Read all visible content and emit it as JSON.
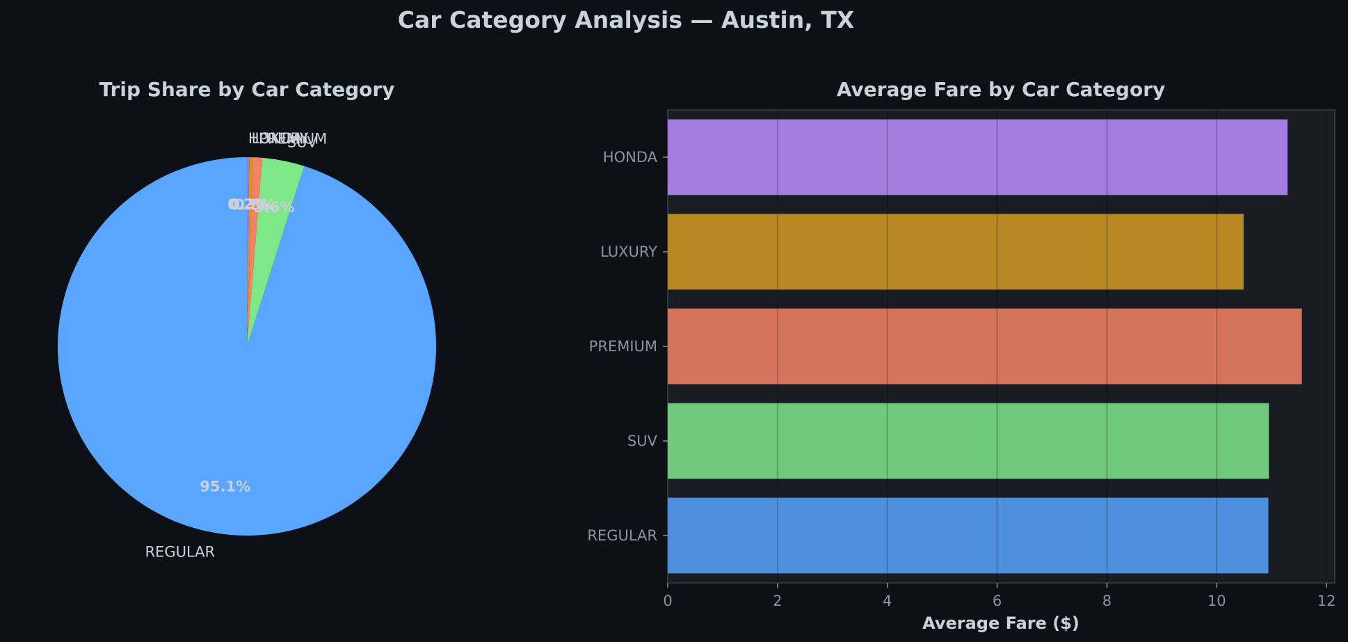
{
  "figure": {
    "title": "Car Category Analysis — Austin, TX",
    "background": "#0d1117",
    "axes_face": "#161b22",
    "text_color": "#c9d1d9",
    "tick_color": "#8b949e"
  },
  "chart_data": [
    {
      "type": "pie",
      "title": "Trip Share by Car Category",
      "categories": [
        "HONDA",
        "LUXURY",
        "PREMIUM",
        "SUV",
        "REGULAR"
      ],
      "values": [
        0.2,
        0.3,
        0.8,
        3.6,
        95.1
      ],
      "labels_pct": [
        "0.2%",
        "0.3%",
        "0.8%",
        "3.6%",
        "95.1%"
      ],
      "colors": [
        "#a371f7",
        "#d29922",
        "#f78166",
        "#7ee787",
        "#58a6ff"
      ],
      "start_angle": 90,
      "direction": "clockwise"
    },
    {
      "type": "bar",
      "orientation": "horizontal",
      "title": "Average Fare by Car Category",
      "categories": [
        "HONDA",
        "LUXURY",
        "PREMIUM",
        "SUV",
        "REGULAR"
      ],
      "values": [
        11.29,
        10.49,
        11.55,
        10.95,
        10.94
      ],
      "colors": [
        "#a37cdf",
        "#b78722",
        "#d6735c",
        "#6fc97a",
        "#4f90de"
      ],
      "xlabel": "Average Fare ($)",
      "ylabel": "",
      "xlim": [
        0,
        12.15
      ],
      "xticks": [
        0,
        2,
        4,
        6,
        8,
        10,
        12
      ],
      "grid": "x"
    }
  ]
}
